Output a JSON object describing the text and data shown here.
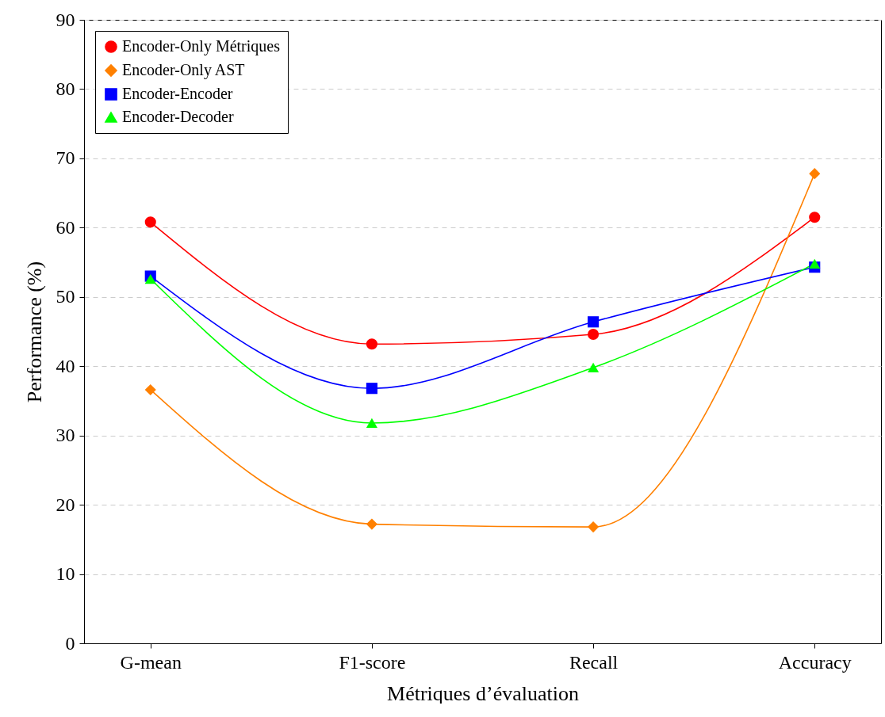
{
  "chart_data": {
    "type": "line",
    "xlabel": "Métriques d’évaluation",
    "ylabel": "Performance (%)",
    "categories": [
      "G-mean",
      "F1-score",
      "Recall",
      "Accuracy"
    ],
    "ylim": [
      0,
      90
    ],
    "yticks": [
      0,
      10,
      20,
      30,
      40,
      50,
      60,
      70,
      80,
      90
    ],
    "grid": "y",
    "legend": "top left",
    "series": [
      {
        "name": "Encoder-Only Métriques",
        "color": "#ff0000",
        "marker": "circle",
        "values": [
          60.8,
          43.2,
          44.6,
          61.5
        ]
      },
      {
        "name": "Encoder-Only AST",
        "color": "#ff8000",
        "marker": "diamond",
        "values": [
          36.6,
          17.2,
          16.8,
          67.8
        ]
      },
      {
        "name": "Encoder-Encoder",
        "color": "#0000ff",
        "marker": "square",
        "values": [
          53.0,
          36.8,
          46.4,
          54.3
        ]
      },
      {
        "name": "Encoder-Decoder",
        "color": "#00ff00",
        "marker": "triangle",
        "values": [
          52.6,
          31.8,
          39.8,
          54.8
        ]
      }
    ]
  }
}
